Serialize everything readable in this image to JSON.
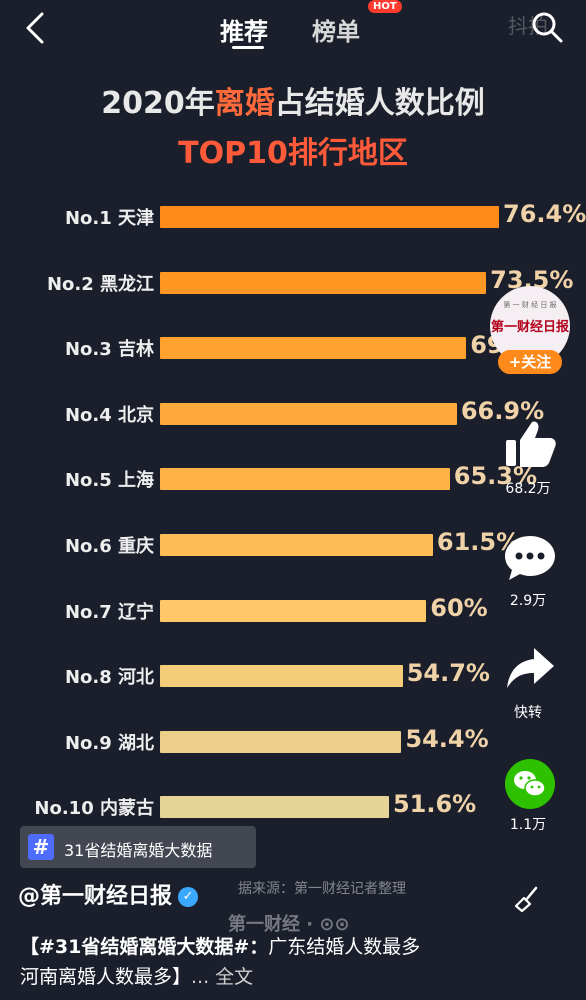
{
  "header": {
    "tabs": [
      {
        "label": "推荐"
      },
      {
        "label": "榜单"
      }
    ],
    "hot_badge": "HOT",
    "watermark": "抖拍"
  },
  "chart_data": {
    "type": "bar",
    "title": "2020年离婚占结婚人数比例",
    "title_parts": [
      "2020年",
      "离婚",
      "占结婚人数比例"
    ],
    "subtitle": "TOP10排行地区",
    "categories": [
      "No.1 天津",
      "No.2 黑龙江",
      "No.3 吉林",
      "No.4 北京",
      "No.5 上海",
      "No.6 重庆",
      "No.7 辽宁",
      "No.8 河北",
      "No.9 湖北",
      "No.10 内蒙古"
    ],
    "values": [
      76.4,
      73.5,
      69,
      66.9,
      65.3,
      61.5,
      60,
      54.7,
      54.4,
      51.6
    ],
    "value_labels": [
      "76.4%",
      "73.5%",
      "69%",
      "66.9%",
      "65.3%",
      "61.5%",
      "60%",
      "54.7%",
      "54.4%",
      "51.6%"
    ],
    "unit": "%",
    "orientation": "horizontal",
    "xlim": [
      0,
      80
    ],
    "grid": false,
    "colors": [
      "#ff8c1a",
      "#ff9822",
      "#ffa22e",
      "#ffaa3a",
      "#ffb347",
      "#ffbd58",
      "#ffc768",
      "#f5cc7a",
      "#ecd08a",
      "#e6d398"
    ]
  },
  "sidebar": {
    "account_name": "第一财经日报",
    "account_sub": "第 一 财 经 日 报",
    "follow_label": "+关注",
    "like_count": "68.2万",
    "comment_count": "2.9万",
    "share_label": "快转",
    "wechat_count": "1.1万"
  },
  "overlay": {
    "hashtag": "31省结婚离婚大数据",
    "source_text": "据来源：第一财经记者整理",
    "logo_text": "第一财经 · ⊙⊙"
  },
  "footer": {
    "author": "@第一财经日报",
    "desc_bold": "【#31省结婚离婚大数据#：",
    "desc_rest": "广东结婚人数最多 河南离婚人数最多】",
    "more": "... 全文"
  }
}
